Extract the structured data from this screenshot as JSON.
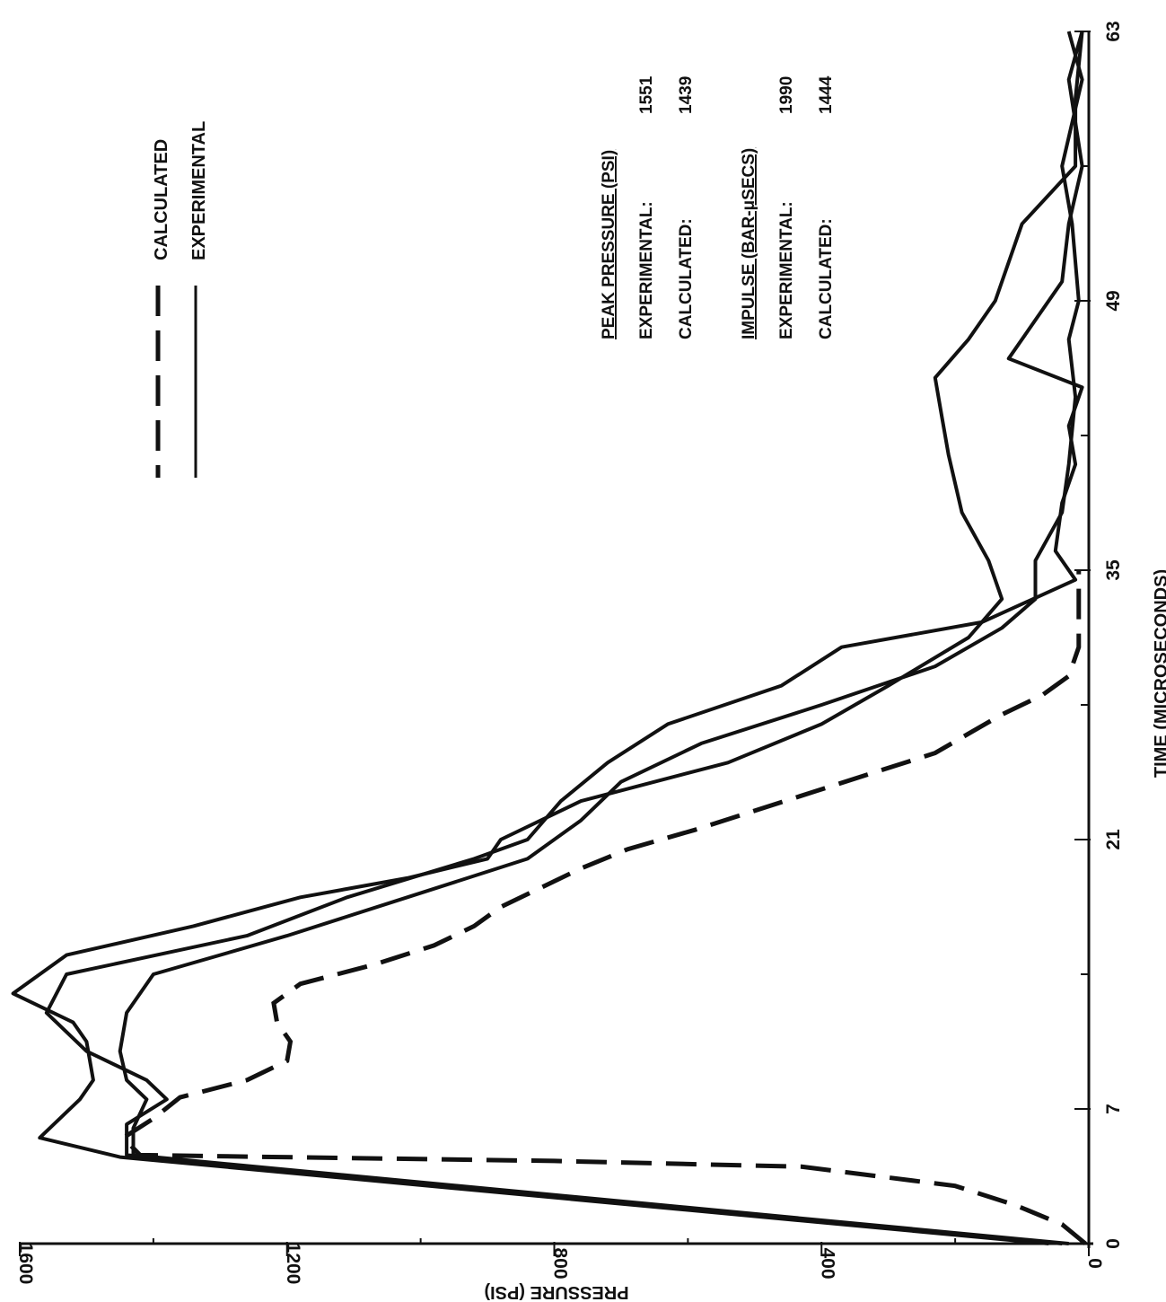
{
  "chart_data": {
    "type": "line",
    "orientation": "rotated-90",
    "xlabel": "TIME (MICROSECONDS)",
    "ylabel": "PRESSURE (PSI)",
    "xlim": [
      0,
      63
    ],
    "ylim": [
      0,
      1600
    ],
    "x_ticks": [
      0,
      7,
      21,
      35,
      49,
      63
    ],
    "x_minor_ticks": [
      14,
      28,
      42,
      56
    ],
    "y_ticks": [
      0,
      400,
      800,
      1200,
      1600
    ],
    "y_minor_ticks": [
      200,
      600,
      1000,
      1400
    ],
    "legend": {
      "placement": "top-left",
      "entries": [
        {
          "label": "CALCULATED",
          "style": "dashed"
        },
        {
          "label": "EXPERIMENTAL",
          "style": "solid"
        }
      ]
    },
    "annotations": {
      "peak_pressure": {
        "heading": "PEAK PRESSURE (PSI)",
        "rows": [
          {
            "label": "EXPERIMENTAL:",
            "value": "1551"
          },
          {
            "label": "CALCULATED:",
            "value": "1439"
          }
        ]
      },
      "impulse": {
        "heading": "IMPULSE (BAR-μSECS)",
        "rows": [
          {
            "label": "EXPERIMENTAL:",
            "value": "1990"
          },
          {
            "label": "CALCULATED:",
            "value": "1444"
          }
        ]
      }
    },
    "series": [
      {
        "style": "dashed",
        "points": [
          [
            0,
            5
          ],
          [
            1,
            40
          ],
          [
            2,
            110
          ],
          [
            3,
            200
          ],
          [
            4,
            430
          ],
          [
            4.3,
            800
          ],
          [
            4.6,
            1420
          ],
          [
            5.5,
            1445
          ],
          [
            6.5,
            1400
          ],
          [
            7.6,
            1360
          ],
          [
            8.5,
            1260
          ],
          [
            9.5,
            1200
          ],
          [
            10.5,
            1195
          ],
          [
            11.5,
            1215
          ],
          [
            12.5,
            1220
          ],
          [
            13.5,
            1180
          ],
          [
            14.5,
            1070
          ],
          [
            15.5,
            980
          ],
          [
            16.5,
            920
          ],
          [
            17.5,
            880
          ],
          [
            18.5,
            820
          ],
          [
            19.5,
            760
          ],
          [
            20.5,
            690
          ],
          [
            21.5,
            590
          ],
          [
            22.5,
            500
          ],
          [
            23.5,
            410
          ],
          [
            24.5,
            320
          ],
          [
            25.5,
            230
          ],
          [
            26.5,
            180
          ],
          [
            27.5,
            130
          ],
          [
            28.5,
            70
          ],
          [
            29.5,
            30
          ],
          [
            31,
            15
          ],
          [
            35,
            15
          ]
        ]
      },
      {
        "style": "solid",
        "points": [
          [
            0,
            60
          ],
          [
            4.5,
            1450
          ],
          [
            5.5,
            1570
          ],
          [
            7.5,
            1510
          ],
          [
            8.5,
            1490
          ],
          [
            10.5,
            1500
          ],
          [
            11.5,
            1520
          ],
          [
            13,
            1610
          ],
          [
            15,
            1530
          ],
          [
            16.5,
            1340
          ],
          [
            18,
            1180
          ],
          [
            19,
            1020
          ],
          [
            20,
            900
          ],
          [
            21,
            880
          ],
          [
            23,
            760
          ],
          [
            25,
            540
          ],
          [
            27,
            400
          ],
          [
            29,
            300
          ],
          [
            31.5,
            180
          ],
          [
            33.5,
            130
          ],
          [
            35.5,
            150
          ],
          [
            38,
            190
          ],
          [
            41,
            210
          ],
          [
            43,
            220
          ],
          [
            45,
            230
          ],
          [
            47,
            180
          ],
          [
            49,
            140
          ],
          [
            53,
            100
          ],
          [
            56,
            20
          ],
          [
            59.5,
            20
          ],
          [
            63,
            10
          ]
        ]
      },
      {
        "style": "solid",
        "points": [
          [
            0,
            40
          ],
          [
            4.6,
            1440
          ],
          [
            6.2,
            1440
          ],
          [
            7.5,
            1380
          ],
          [
            8.5,
            1410
          ],
          [
            10,
            1500
          ],
          [
            12,
            1560
          ],
          [
            14,
            1530
          ],
          [
            16,
            1260
          ],
          [
            18,
            1110
          ],
          [
            20,
            920
          ],
          [
            21,
            840
          ],
          [
            23,
            790
          ],
          [
            25,
            720
          ],
          [
            27,
            630
          ],
          [
            29,
            460
          ],
          [
            31,
            370
          ],
          [
            32.3,
            160
          ],
          [
            34.5,
            20
          ],
          [
            36,
            50
          ],
          [
            38.5,
            40
          ],
          [
            40.5,
            20
          ],
          [
            42.5,
            30
          ],
          [
            44.5,
            10
          ],
          [
            46,
            120
          ],
          [
            48,
            80
          ],
          [
            50,
            40
          ],
          [
            53,
            30
          ],
          [
            56,
            10
          ],
          [
            60.5,
            30
          ],
          [
            63,
            10
          ]
        ]
      },
      {
        "style": "solid",
        "points": [
          [
            0,
            30
          ],
          [
            4.6,
            1430
          ],
          [
            6,
            1430
          ],
          [
            7.5,
            1410
          ],
          [
            8.5,
            1440
          ],
          [
            10,
            1450
          ],
          [
            12,
            1440
          ],
          [
            14,
            1400
          ],
          [
            16,
            1200
          ],
          [
            18,
            1020
          ],
          [
            20,
            840
          ],
          [
            22,
            760
          ],
          [
            24,
            700
          ],
          [
            26,
            580
          ],
          [
            28,
            400
          ],
          [
            30,
            230
          ],
          [
            32,
            130
          ],
          [
            33.5,
            80
          ],
          [
            35.5,
            80
          ],
          [
            38,
            40
          ],
          [
            40.5,
            30
          ],
          [
            44,
            20
          ],
          [
            47,
            30
          ],
          [
            49,
            15
          ],
          [
            53,
            25
          ],
          [
            56,
            40
          ],
          [
            60.5,
            10
          ],
          [
            63,
            30
          ]
        ]
      }
    ]
  }
}
